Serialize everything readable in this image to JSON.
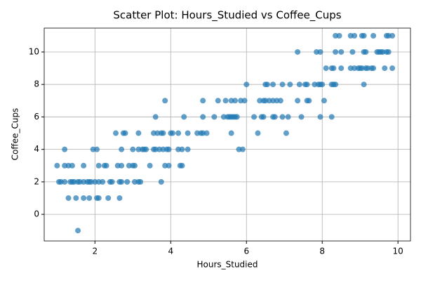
{
  "chart_data": {
    "type": "scatter",
    "title": "Scatter Plot: Hours_Studied vs Coffee_Cups",
    "x_label": "Hours_Studied",
    "y_label": "Coffee_Cups",
    "color": "#1f77b4",
    "grid": true,
    "xlim": [
      0.66,
      10.33
    ],
    "ylim": [
      -1.64,
      11.47
    ],
    "xticks": [
      2,
      4,
      6,
      8,
      10
    ],
    "yticks": [
      0,
      2,
      4,
      6,
      8,
      10
    ],
    "x": [
      1.55,
      1.3,
      1.5,
      1.7,
      1.85,
      2.05,
      2.1,
      2.35,
      2.65,
      1.05,
      1.1,
      1.2,
      1.35,
      1.4,
      1.45,
      1.55,
      1.6,
      1.7,
      1.8,
      1.85,
      1.9,
      2.0,
      2.1,
      2.2,
      2.4,
      2.45,
      2.65,
      2.7,
      2.85,
      3.05,
      3.15,
      3.2,
      3.75,
      1.0,
      1.2,
      1.3,
      1.4,
      1.7,
      2.1,
      2.25,
      2.3,
      2.6,
      2.7,
      2.9,
      3.0,
      3.05,
      3.45,
      3.85,
      3.95,
      4.25,
      4.3,
      1.2,
      1.95,
      2.05,
      2.7,
      3.0,
      3.15,
      3.25,
      3.3,
      3.35,
      3.55,
      3.6,
      3.7,
      3.8,
      3.9,
      3.95,
      4.2,
      4.3,
      4.45,
      5.8,
      5.9,
      2.55,
      2.75,
      2.8,
      3.15,
      3.55,
      3.65,
      3.75,
      3.8,
      4.0,
      4.05,
      4.2,
      4.45,
      4.7,
      4.8,
      4.85,
      4.95,
      5.6,
      6.3,
      7.05,
      3.6,
      4.35,
      4.85,
      5.15,
      5.4,
      5.5,
      5.55,
      5.6,
      5.65,
      5.7,
      5.75,
      6.2,
      6.4,
      6.45,
      6.7,
      6.75,
      6.95,
      7.1,
      7.45,
      7.95,
      8.25,
      3.85,
      4.85,
      5.25,
      5.45,
      5.6,
      5.7,
      5.85,
      5.95,
      6.35,
      6.45,
      6.5,
      6.6,
      6.7,
      6.8,
      6.9,
      7.35,
      7.6,
      7.65,
      8.05,
      6.0,
      6.5,
      6.55,
      6.7,
      6.95,
      7.15,
      7.4,
      7.55,
      7.6,
      7.8,
      7.9,
      7.95,
      8.0,
      8.25,
      8.3,
      8.35,
      9.1,
      8.1,
      8.25,
      8.3,
      8.5,
      8.75,
      8.85,
      8.95,
      9.0,
      9.05,
      9.15,
      9.2,
      9.3,
      9.35,
      9.65,
      9.85,
      7.35,
      7.85,
      7.95,
      8.35,
      8.5,
      8.8,
      9.1,
      9.15,
      9.45,
      9.5,
      9.55,
      9.6,
      9.7,
      9.75,
      8.35,
      8.45,
      8.75,
      8.85,
      9.05,
      9.1,
      9.35,
      9.7,
      9.75,
      9.85
    ],
    "y": [
      -1,
      1,
      1,
      1,
      1,
      1,
      1,
      1,
      1,
      2,
      2,
      2,
      2,
      2,
      2,
      2,
      2,
      2,
      2,
      2,
      2,
      2,
      2,
      2,
      2,
      2,
      2,
      2,
      2,
      2,
      2,
      2,
      2,
      3,
      3,
      3,
      3,
      3,
      3,
      3,
      3,
      3,
      3,
      3,
      3,
      3,
      3,
      3,
      3,
      3,
      3,
      4,
      4,
      4,
      4,
      4,
      4,
      4,
      4,
      4,
      4,
      4,
      4,
      4,
      4,
      4,
      4,
      4,
      4,
      4,
      4,
      5,
      5,
      5,
      5,
      5,
      5,
      5,
      5,
      5,
      5,
      5,
      5,
      5,
      5,
      5,
      5,
      5,
      5,
      5,
      6,
      6,
      6,
      6,
      6,
      6,
      6,
      6,
      6,
      6,
      6,
      6,
      6,
      6,
      6,
      6,
      6,
      6,
      6,
      6,
      6,
      7,
      7,
      7,
      7,
      7,
      7,
      7,
      7,
      7,
      7,
      7,
      7,
      7,
      7,
      7,
      7,
      7,
      7,
      7,
      8,
      8,
      8,
      8,
      8,
      8,
      8,
      8,
      8,
      8,
      8,
      8,
      8,
      8,
      8,
      8,
      8,
      9,
      9,
      9,
      9,
      9,
      9,
      9,
      9,
      9,
      9,
      9,
      9,
      9,
      9,
      9,
      10,
      10,
      10,
      10,
      10,
      10,
      10,
      10,
      10,
      10,
      10,
      10,
      10,
      10,
      11,
      11,
      11,
      11,
      11,
      11,
      11,
      11,
      11,
      11
    ]
  }
}
